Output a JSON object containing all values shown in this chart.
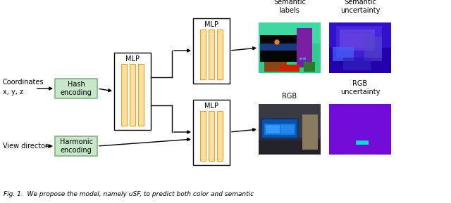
{
  "bg_color": "#ffffff",
  "hash_box_color": "#c8e6c9",
  "hash_box_edge": "#7cb87c",
  "harmonic_box_color": "#c8e6c9",
  "harmonic_box_edge": "#7cb87c",
  "bar_fill_color": "#FFE0A0",
  "bar_edge_color": "#E8A020",
  "coordinates_text": "Coordinates\nx, y, z",
  "view_direction_text": "View directon",
  "hash_text": "Hash\nencoding",
  "harmonic_text": "Harmonic\nencoding",
  "mlp_center_text": "MLP",
  "mlp_top_text": "MLP",
  "mlp_bottom_text": "MLP",
  "sem_labels_text": "Semantic\nlabels",
  "sem_uncert_text": "Semantic\nuncertainty",
  "rgb_text": "RGB",
  "rgb_uncert_text": "RGB\nuncertainty",
  "fig_caption": "Fig. 1.  We propose the model, namely uSF, to predict both color and semantic"
}
